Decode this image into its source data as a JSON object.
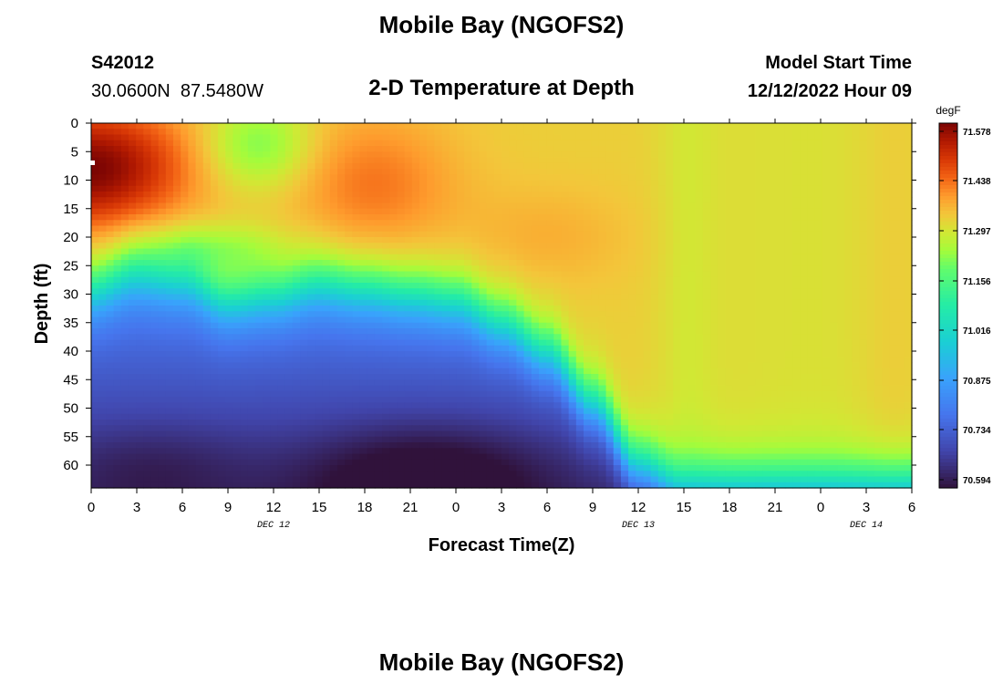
{
  "page": {
    "title_top": "Mobile Bay (NGOFS2)",
    "title_bottom": "Mobile Bay (NGOFS2)",
    "station_id": "S42012",
    "station_coords": "30.0600N  87.5480W",
    "plot_subtitle": "2-D Temperature at Depth",
    "model_start_label": "Model Start Time",
    "model_start_value": "12/12/2022 Hour 09"
  },
  "chart_data": {
    "type": "heatmap",
    "title": "2-D Temperature at Depth",
    "xlabel": "Forecast Time(Z)",
    "ylabel": "Depth (ft)",
    "x_hours": [
      0,
      3,
      6,
      9,
      12,
      15,
      18,
      21,
      24,
      27,
      30,
      33,
      36,
      39,
      42,
      45,
      48,
      51,
      54
    ],
    "x_tick_labels": [
      "0",
      "3",
      "6",
      "9",
      "12",
      "15",
      "18",
      "21",
      "0",
      "3",
      "6",
      "9",
      "12",
      "15",
      "18",
      "21",
      "0",
      "3",
      "6"
    ],
    "x_range_hours": [
      0,
      54
    ],
    "date_labels": [
      {
        "label": "DEC 12",
        "hour": 12
      },
      {
        "label": "DEC 13",
        "hour": 36
      },
      {
        "label": "DEC 14",
        "hour": 51
      }
    ],
    "y_ticks": [
      0,
      5,
      10,
      15,
      20,
      25,
      30,
      35,
      40,
      45,
      50,
      55,
      60
    ],
    "y_tick_labels": [
      "0",
      "5",
      "10",
      "15",
      "20",
      "25",
      "30",
      "35",
      "40",
      "45",
      "50",
      "55",
      "60"
    ],
    "y_range_ft": [
      0,
      64
    ],
    "y_inverted": true,
    "colorbar": {
      "unit": "degF",
      "ticks": [
        71.578,
        71.438,
        71.297,
        71.156,
        71.016,
        70.875,
        70.734,
        70.594
      ],
      "tick_labels": [
        "71.578",
        "71.438",
        "71.297",
        "71.156",
        "71.016",
        "70.875",
        "70.734",
        "70.594"
      ],
      "range": [
        70.57,
        71.6
      ],
      "colormap": "turbo"
    },
    "thermocline_depth_ft": {
      "hours": [
        0,
        3,
        6,
        9,
        12,
        15,
        18,
        21,
        24,
        27,
        30,
        33,
        36,
        39,
        42,
        45,
        48,
        51,
        54
      ],
      "depths": [
        29,
        26,
        27,
        31,
        30,
        28,
        29,
        30,
        31,
        35,
        40,
        49,
        60,
        64,
        64,
        64,
        64,
        64,
        64
      ]
    },
    "warm_core": {
      "hour": 0,
      "depth_ft": 8,
      "value": 71.578
    },
    "cold_core": {
      "hour": 22,
      "depth_ft": 62,
      "value": 70.594
    },
    "surface_layer_after_40h": 71.3
  }
}
